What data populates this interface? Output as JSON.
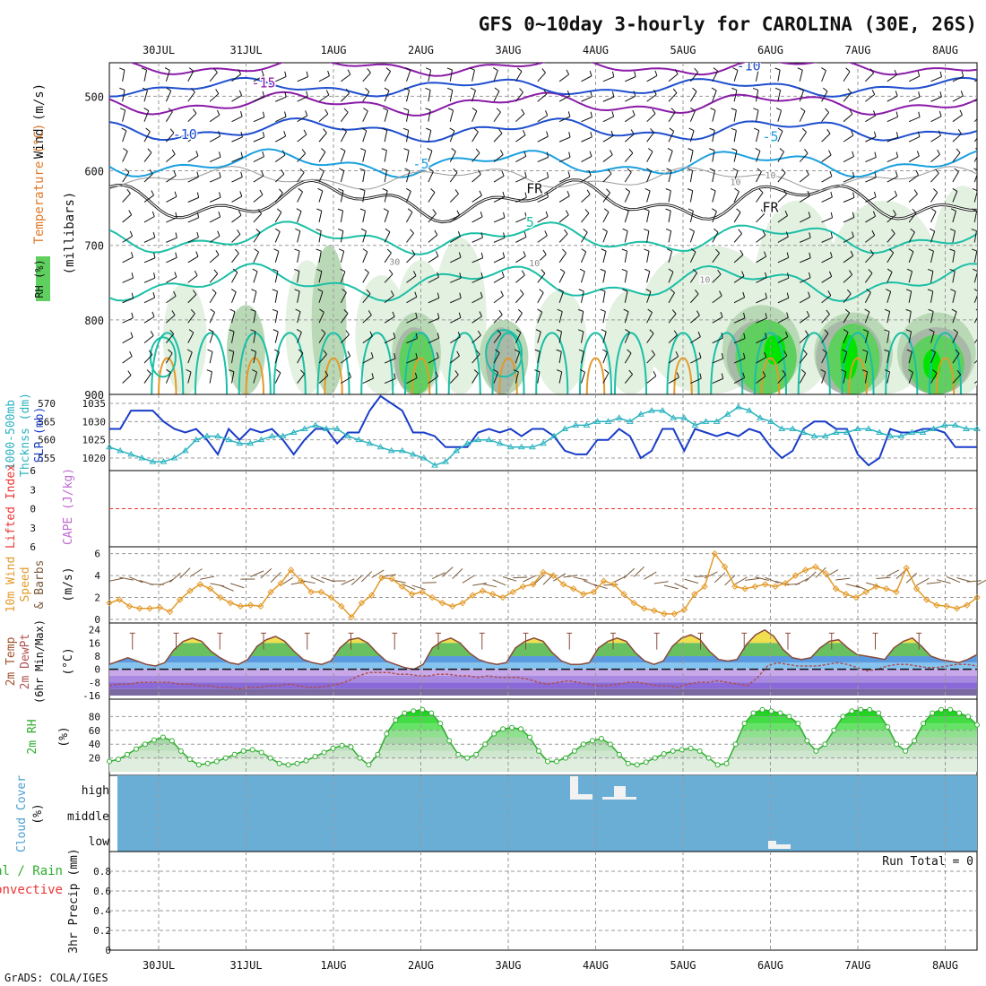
{
  "title": "GFS 0~10day 3-hourly for CAROLINA (30E, 26S)",
  "footer": "GrADS: COLA/IGES",
  "date_ticks": [
    "30JUL",
    "31JUL",
    "1AUG",
    "2AUG",
    "3AUG",
    "4AUG",
    "5AUG",
    "6AUG",
    "7AUG",
    "8AUG"
  ],
  "colors": {
    "rh_light": "#e3f1e1",
    "rh_mid": "#b9d9b6",
    "rh_gray": "#a9b9a8",
    "rh_green": "#5fd05f",
    "rh_bright": "#00e400",
    "temp_purple": "#8a1ca8",
    "temp_blue": "#1f4fcf",
    "temp_sky": "#1aa0df",
    "temp_teal": "#1bbfa6",
    "temp_orange": "#e39a2a",
    "slp": "#1a3dc8",
    "thickness": "#2bb3c0",
    "wind": "#e39a2a",
    "barb": "#7a5a3a",
    "cloud_bg": "#6aaed6",
    "cloud_bar": "#f2f2f2",
    "dewpt": "#b05050",
    "rh2m": "#2fae2f"
  },
  "chart_data": [
    {
      "type": "contour",
      "name": "upper",
      "ylabel_parts": [
        "Wind (m/s)",
        "Temperature (°C)",
        "(millibars)"
      ],
      "rh_label": "RH (%)",
      "yticks": [
        500,
        600,
        700,
        800,
        900
      ],
      "ylim": [
        455,
        900
      ],
      "contour_labels": [
        {
          "text": "-15",
          "day": 1.2,
          "p": 488
        },
        {
          "text": "-10",
          "day": 0.3,
          "p": 557
        },
        {
          "text": "-10",
          "day": 6.75,
          "p": 465
        },
        {
          "text": "-5",
          "day": 3.0,
          "p": 597
        },
        {
          "text": "-5",
          "day": 7.0,
          "p": 560
        },
        {
          "text": "5",
          "day": 4.25,
          "p": 675
        },
        {
          "text": "10",
          "day": 6.25,
          "p": 750
        },
        {
          "text": "FR",
          "day": 4.3,
          "p": 630
        },
        {
          "text": "FR",
          "day": 7.0,
          "p": 655
        },
        {
          "text": "10",
          "day": 6.6,
          "p": 619
        },
        {
          "text": "10",
          "day": 7.0,
          "p": 610
        },
        {
          "text": "10",
          "day": 4.3,
          "p": 728
        },
        {
          "text": "30",
          "day": 2.7,
          "p": 726
        }
      ]
    },
    {
      "type": "line",
      "name": "slp_thickness",
      "ylabel_left": [
        "1000-500mb",
        "Thcknss (dm)"
      ],
      "ylabel_right": "SLP (mb)",
      "yticks_left": [
        555,
        560,
        565,
        570
      ],
      "yticks_right": [
        1020,
        1025,
        1030,
        1035
      ],
      "series": [
        {
          "name": "SLP",
          "values": [
            1028,
            1028,
            1033,
            1033,
            1033,
            1030,
            1028,
            1027,
            1028,
            1025,
            1021,
            1028,
            1025,
            1028,
            1027,
            1028,
            1025,
            1021,
            1025,
            1028,
            1028,
            1024,
            1027,
            1027,
            1033,
            1037,
            1035,
            1033,
            1027,
            1027,
            1026,
            1023,
            1023,
            1023,
            1027,
            1028,
            1027,
            1028,
            1026,
            1028,
            1028,
            1026,
            1022,
            1021,
            1021,
            1025,
            1025,
            1028,
            1026,
            1020,
            1022,
            1028,
            1028,
            1022,
            1028,
            1027,
            1026,
            1027,
            1026,
            1028,
            1027,
            1023,
            1020,
            1022,
            1028,
            1030,
            1030,
            1028,
            1028,
            1021,
            1018,
            1020,
            1028,
            1027,
            1027,
            1028,
            1028,
            1027,
            1023,
            1023,
            1023
          ]
        },
        {
          "name": "Thickness",
          "values": [
            558,
            557,
            556,
            555,
            554,
            554,
            555,
            557,
            560,
            561,
            561,
            560,
            559,
            559,
            560,
            561,
            561,
            562,
            563,
            564,
            563,
            563,
            561,
            560,
            559,
            558,
            557,
            557,
            556,
            555,
            553,
            554,
            557,
            559,
            560,
            560,
            559,
            558,
            558,
            558,
            559,
            561,
            563,
            564,
            564,
            565,
            565,
            566,
            565,
            567,
            568,
            568,
            566,
            566,
            564,
            565,
            565,
            567,
            569,
            568,
            566,
            565,
            563,
            563,
            562,
            561,
            561,
            562,
            562,
            563,
            563,
            562,
            561,
            561,
            562,
            562,
            563,
            564,
            564,
            563,
            563
          ]
        }
      ]
    },
    {
      "type": "line",
      "name": "cape",
      "ylabel_left": "Lifted Index",
      "ylabel_right": "CAPE (J/kg)",
      "yticks": [
        6,
        3,
        0,
        -3,
        -6
      ],
      "ylim": [
        -6,
        6
      ]
    },
    {
      "type": "line",
      "name": "wind10m",
      "ylabel": [
        "10m Wind",
        "Speed",
        "& Barbs",
        "(m/s)"
      ],
      "yticks": [
        0,
        2,
        4,
        6
      ],
      "ylim": [
        0,
        6.3
      ],
      "values": [
        1.5,
        1.8,
        1.2,
        1.0,
        1.0,
        1.1,
        0.7,
        1.8,
        2.6,
        3.2,
        2.8,
        2.0,
        1.5,
        1.2,
        1.3,
        1.2,
        2.5,
        3.3,
        4.5,
        3.5,
        2.5,
        2.5,
        2.0,
        1.2,
        0.2,
        1.5,
        2.2,
        3.8,
        3.7,
        3.0,
        2.3,
        2.5,
        2.0,
        1.5,
        1.2,
        1.5,
        2.2,
        2.6,
        2.3,
        2.0,
        2.5,
        3.0,
        3.2,
        4.3,
        4.0,
        3.2,
        2.8,
        2.3,
        2.5,
        3.5,
        3.2,
        2.3,
        1.5,
        1.0,
        0.8,
        0.5,
        0.5,
        0.9,
        2.3,
        3.0,
        6.0,
        4.8,
        3.0,
        2.8,
        3.0,
        3.2,
        3.0,
        3.3,
        4.0,
        4.5,
        4.8,
        4.2,
        2.8,
        2.3,
        2.0,
        2.5,
        3.0,
        2.8,
        2.5,
        4.7,
        2.8,
        1.8,
        1.3,
        1.2,
        1.0,
        1.3,
        2.0
      ]
    },
    {
      "type": "area",
      "name": "temp2m",
      "ylabel": [
        "2m Temp",
        "2m DewPt",
        "(6hr Min/Max)",
        "(°C)"
      ],
      "yticks": [
        24,
        16,
        8,
        0,
        -8,
        -16
      ],
      "ylim": [
        -16,
        26
      ],
      "temp": [
        3,
        5,
        7,
        5,
        3,
        2,
        4,
        12,
        17,
        19,
        17,
        11,
        7,
        4,
        3,
        6,
        14,
        18,
        20,
        17,
        11,
        6,
        4,
        3,
        5,
        13,
        18,
        19,
        16,
        10,
        5,
        3,
        1,
        0,
        3,
        13,
        17,
        19,
        16,
        10,
        6,
        4,
        3,
        4,
        13,
        17,
        19,
        17,
        10,
        5,
        3,
        3,
        4,
        13,
        17,
        19,
        17,
        10,
        5,
        3,
        5,
        14,
        19,
        21,
        18,
        11,
        6,
        5,
        6,
        15,
        21,
        24,
        20,
        12,
        7,
        6,
        7,
        13,
        17,
        18,
        13,
        9,
        8,
        7,
        6,
        13,
        17,
        19,
        14,
        8,
        6,
        5,
        4,
        6,
        9
      ],
      "dewpt": [
        -10,
        -9,
        -9,
        -8,
        -8,
        -8,
        -8,
        -9,
        -9,
        -10,
        -10,
        -11,
        -11,
        -12,
        -11,
        -11,
        -10,
        -10,
        -9,
        -10,
        -11,
        -11,
        -10,
        -9,
        -7,
        -4,
        -2,
        -2,
        -2,
        -3,
        -3,
        -4,
        -4,
        -3,
        -3,
        -4,
        -4,
        -5,
        -4,
        -5,
        -5,
        -5,
        -6,
        -8,
        -9,
        -8,
        -7,
        -8,
        -9,
        -10,
        -10,
        -9,
        -8,
        -8,
        -9,
        -10,
        -10,
        -11,
        -9,
        -8,
        -8,
        -7,
        -8,
        -9,
        -10,
        -5,
        2,
        4,
        3,
        2,
        2,
        2,
        3,
        4,
        3,
        1,
        -1,
        0,
        2,
        3,
        3,
        2,
        1,
        1,
        2,
        3,
        3,
        2
      ]
    },
    {
      "type": "area",
      "name": "rh2m",
      "ylabel": [
        "2m RH",
        "(%)"
      ],
      "yticks": [
        20,
        40,
        60,
        80
      ],
      "ylim": [
        0,
        100
      ],
      "values": [
        15,
        18,
        25,
        33,
        40,
        46,
        50,
        45,
        30,
        18,
        10,
        12,
        15,
        20,
        25,
        30,
        32,
        28,
        20,
        12,
        10,
        12,
        16,
        22,
        28,
        34,
        38,
        36,
        20,
        10,
        25,
        55,
        75,
        85,
        88,
        90,
        85,
        70,
        45,
        25,
        20,
        25,
        40,
        55,
        62,
        64,
        62,
        50,
        30,
        15,
        15,
        20,
        30,
        40,
        45,
        48,
        40,
        25,
        12,
        10,
        14,
        20,
        26,
        30,
        32,
        34,
        30,
        20,
        10,
        12,
        40,
        70,
        85,
        90,
        88,
        85,
        80,
        70,
        45,
        30,
        40,
        60,
        80,
        88,
        90,
        90,
        85,
        65,
        40,
        30,
        45,
        70,
        85,
        90,
        90,
        85,
        80,
        68
      ]
    },
    {
      "type": "bar",
      "name": "cloud",
      "ylabel": [
        "Cloud Cover",
        "(%)"
      ],
      "levels": [
        "high",
        "middle",
        "low"
      ]
    },
    {
      "type": "bar",
      "name": "precip",
      "ylabel_left": [
        "Total / Rain",
        "Convective"
      ],
      "ylabel": [
        "3hr Precip (mm)"
      ],
      "yticks": [
        0,
        0.2,
        0.4,
        0.6,
        0.8
      ],
      "ylim": [
        0,
        1
      ],
      "run_total": "Run Total = 0"
    }
  ]
}
